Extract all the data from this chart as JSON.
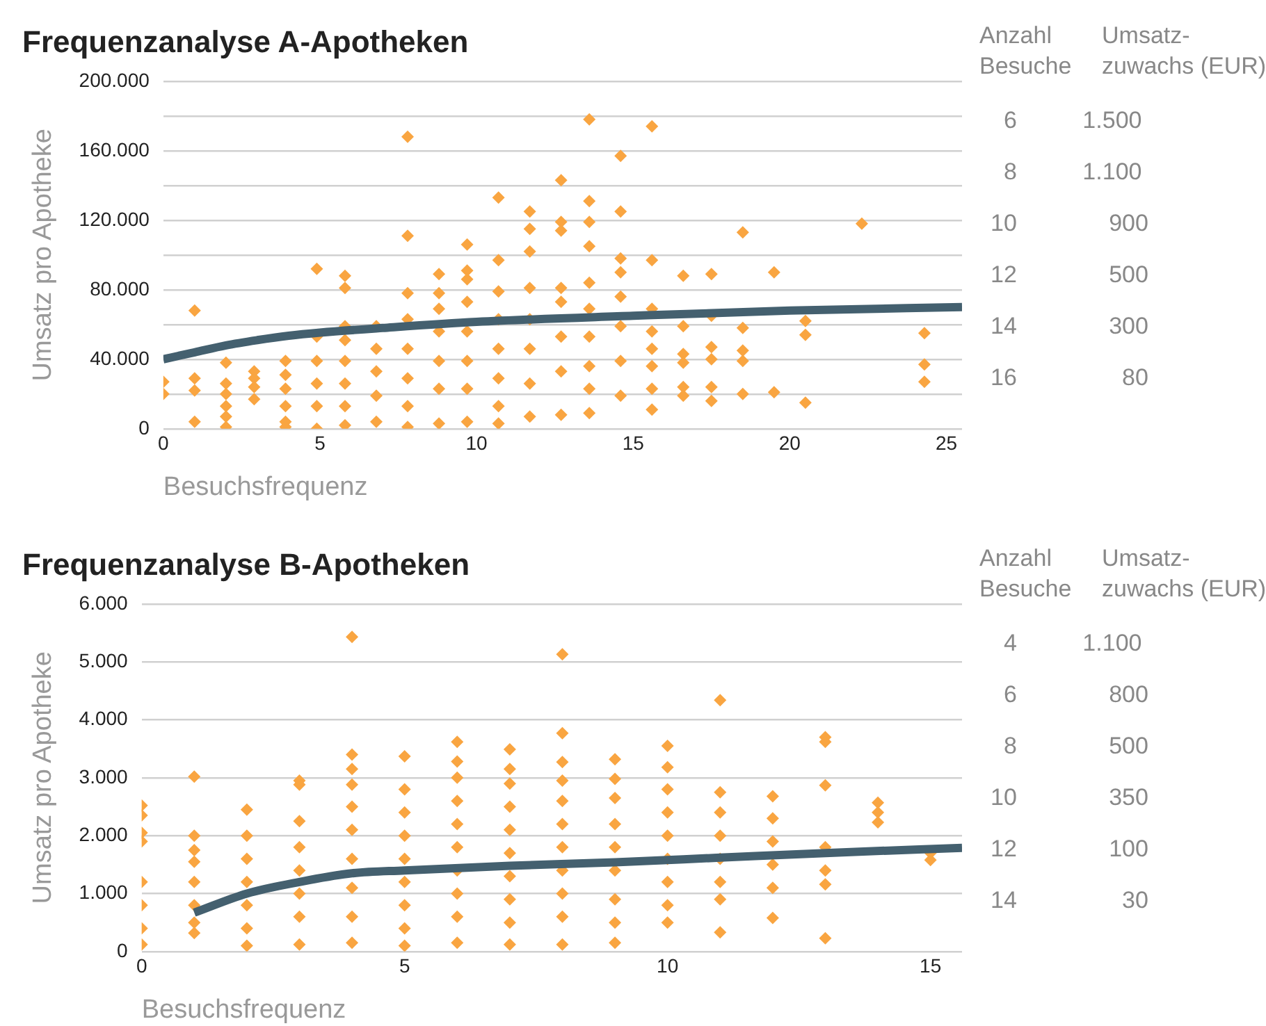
{
  "chart_data": [
    {
      "type": "scatter",
      "title": "Frequenzanalyse A-Apotheken",
      "xlabel": "Besuchsfrequenz",
      "ylabel": "Umsatz pro Apotheke",
      "grid": "y",
      "legend": false,
      "xlim": [
        0,
        25.5
      ],
      "xticks": [
        0,
        5,
        10,
        15,
        20,
        25
      ],
      "ylim": [
        0,
        200000
      ],
      "yticks": [
        {
          "value": 0,
          "label": "0"
        },
        {
          "value": 20000,
          "label": null
        },
        {
          "value": 40000,
          "label": "40.000"
        },
        {
          "value": 60000,
          "label": null
        },
        {
          "value": 80000,
          "label": "80.000"
        },
        {
          "value": 100000,
          "label": null
        },
        {
          "value": 120000,
          "label": "120.000"
        },
        {
          "value": 140000,
          "label": null
        },
        {
          "value": 160000,
          "label": "160.000"
        },
        {
          "value": 180000,
          "label": null
        },
        {
          "value": 200000,
          "label": "200.000"
        }
      ],
      "series": [
        {
          "type": "scatter",
          "marker": "diamond",
          "color": "#f9a541",
          "x": [
            0,
            0,
            1,
            1,
            1,
            1,
            2,
            2,
            2,
            2,
            2,
            2,
            2.9,
            2.9,
            2.9,
            2.9,
            3.9,
            3.9,
            3.9,
            3.9,
            3.9,
            3.9,
            4.9,
            4.9,
            4.9,
            4.9,
            4.9,
            4.9,
            5.8,
            5.8,
            5.8,
            5.8,
            5.8,
            5.8,
            5.8,
            5.8,
            6.8,
            6.8,
            6.8,
            6.8,
            6.8,
            7.8,
            7.8,
            7.8,
            7.8,
            7.8,
            7.8,
            7.8,
            7.8,
            8.8,
            8.8,
            8.8,
            8.8,
            8.8,
            8.8,
            8.8,
            9.7,
            9.7,
            9.7,
            9.7,
            9.7,
            9.7,
            9.7,
            9.7,
            10.7,
            10.7,
            10.7,
            10.7,
            10.7,
            10.7,
            10.7,
            10.7,
            11.7,
            11.7,
            11.7,
            11.7,
            11.7,
            11.7,
            11.7,
            11.7,
            12.7,
            12.7,
            12.7,
            12.7,
            12.7,
            12.7,
            12.7,
            12.7,
            13.6,
            13.6,
            13.6,
            13.6,
            13.6,
            13.6,
            13.6,
            13.6,
            13.6,
            13.6,
            14.6,
            14.6,
            14.6,
            14.6,
            14.6,
            14.6,
            14.6,
            14.6,
            15.6,
            15.6,
            15.6,
            15.6,
            15.6,
            15.6,
            15.6,
            15.6,
            16.6,
            16.6,
            16.6,
            16.6,
            16.6,
            16.6,
            17.5,
            17.5,
            17.5,
            17.5,
            17.5,
            17.5,
            18.5,
            18.5,
            18.5,
            18.5,
            18.5,
            19.5,
            19.5,
            20.5,
            20.5,
            20.5,
            22.3,
            24.3,
            24.3,
            24.3
          ],
          "values": [
            27000,
            20000,
            68000,
            29000,
            22000,
            4000,
            38000,
            26000,
            20000,
            13000,
            7000,
            1000,
            33000,
            29000,
            24000,
            17000,
            39000,
            31000,
            23000,
            13000,
            4000,
            1000,
            92000,
            53000,
            39000,
            26000,
            13000,
            0,
            88000,
            81000,
            59000,
            51000,
            39000,
            26000,
            13000,
            2000,
            59000,
            46000,
            33000,
            19000,
            4000,
            168000,
            111000,
            78000,
            63000,
            46000,
            29000,
            13000,
            1000,
            89000,
            78000,
            69000,
            56000,
            39000,
            23000,
            3000,
            106000,
            91000,
            86000,
            73000,
            56000,
            39000,
            23000,
            4000,
            133000,
            97000,
            79000,
            63000,
            46000,
            29000,
            13000,
            3000,
            125000,
            115000,
            102000,
            81000,
            63000,
            46000,
            26000,
            7000,
            143000,
            119000,
            114000,
            81000,
            73000,
            53000,
            33000,
            8000,
            178000,
            131000,
            119000,
            105000,
            84000,
            69000,
            53000,
            36000,
            23000,
            9000,
            157000,
            125000,
            98000,
            90000,
            76000,
            59000,
            39000,
            19000,
            174000,
            97000,
            69000,
            56000,
            46000,
            36000,
            23000,
            11000,
            88000,
            59000,
            43000,
            38000,
            24000,
            19000,
            89000,
            65000,
            47000,
            40000,
            24000,
            16000,
            113000,
            58000,
            45000,
            39000,
            20000,
            90000,
            21000,
            62000,
            54000,
            15000,
            118000,
            55000,
            37000,
            27000
          ]
        },
        {
          "type": "line",
          "marker": "none",
          "color": "#44606f",
          "x": [
            0,
            1,
            2,
            3,
            4,
            5,
            7,
            10,
            15,
            20,
            25.5
          ],
          "values": [
            40000,
            44000,
            48000,
            51000,
            53500,
            55300,
            58000,
            61500,
            65000,
            68000,
            70000
          ]
        }
      ]
    },
    {
      "type": "other",
      "annotations": [
        "Anzahl",
        "Umsatz-",
        "Besuche",
        "zuwachs (EUR)",
        "6 1.500",
        "8 1.100",
        "10 900",
        "12 500",
        "14 300",
        "16 80"
      ]
    },
    {
      "type": "scatter",
      "title": "Frequenzanalyse B-Apotheken",
      "xlabel": "Besuchsfrequenz",
      "ylabel": "Umsatz pro Apotheke",
      "grid": "y",
      "legend": false,
      "xlim": [
        0,
        15.6
      ],
      "xticks": [
        0,
        5,
        10,
        15
      ],
      "ylim": [
        0,
        6000
      ],
      "yticks": [
        {
          "value": 0,
          "label": "0"
        },
        {
          "value": 1000,
          "label": "1.000"
        },
        {
          "value": 2000,
          "label": "2.000"
        },
        {
          "value": 3000,
          "label": "3.000"
        },
        {
          "value": 4000,
          "label": "4.000"
        },
        {
          "value": 5000,
          "label": "5.000"
        },
        {
          "value": 6000,
          "label": "6.000"
        }
      ],
      "series": [
        {
          "type": "scatter",
          "marker": "diamond",
          "color": "#f9a541",
          "x": [
            0,
            0,
            0,
            0,
            0,
            0,
            0,
            0,
            1,
            1,
            1,
            1,
            1,
            1,
            1,
            1,
            2,
            2,
            2,
            2,
            2,
            2,
            2,
            3,
            3,
            3,
            3,
            3,
            3,
            3,
            3,
            4,
            4,
            4,
            4,
            4,
            4,
            4,
            4,
            4,
            4,
            5,
            5,
            5,
            5,
            5,
            5,
            5,
            5,
            5,
            6,
            6,
            6,
            6,
            6,
            6,
            6,
            6,
            6,
            6,
            7,
            7,
            7,
            7,
            7,
            7,
            7,
            7,
            7,
            7,
            8,
            8,
            8,
            8,
            8,
            8,
            8,
            8,
            8,
            8,
            8,
            9,
            9,
            9,
            9,
            9,
            9,
            9,
            9,
            9,
            10,
            10,
            10,
            10,
            10,
            10,
            10,
            10,
            10,
            11,
            11,
            11,
            11,
            11,
            11,
            11,
            11,
            12,
            12,
            12,
            12,
            12,
            12,
            13,
            13,
            13,
            13,
            13,
            13,
            13,
            14,
            14,
            14,
            15,
            15
          ],
          "values": [
            2520,
            2350,
            2050,
            1900,
            1200,
            800,
            400,
            120,
            3020,
            2000,
            1750,
            1550,
            1200,
            800,
            500,
            320,
            2450,
            2000,
            1600,
            1200,
            800,
            400,
            100,
            2950,
            2880,
            2250,
            1800,
            1400,
            1000,
            600,
            120,
            5430,
            3400,
            3150,
            2880,
            2500,
            2100,
            1600,
            1100,
            600,
            150,
            3370,
            2800,
            2400,
            2000,
            1600,
            1200,
            800,
            400,
            100,
            3620,
            3280,
            3000,
            2600,
            2200,
            1800,
            1400,
            1000,
            600,
            150,
            3490,
            3150,
            2900,
            2500,
            2100,
            1700,
            1300,
            900,
            500,
            120,
            5130,
            3770,
            3270,
            2950,
            2600,
            2200,
            1800,
            1400,
            1000,
            600,
            120,
            3320,
            2980,
            2650,
            2200,
            1800,
            1400,
            900,
            500,
            150,
            3550,
            3180,
            2800,
            2400,
            2000,
            1600,
            1200,
            800,
            500,
            4340,
            2750,
            2400,
            2000,
            1600,
            1200,
            900,
            330,
            2680,
            2300,
            1900,
            1500,
            1100,
            580,
            3700,
            3620,
            2870,
            1800,
            1400,
            1160,
            230,
            2570,
            2400,
            2230,
            1700,
            1580
          ]
        },
        {
          "type": "line",
          "marker": "none",
          "color": "#44606f",
          "x": [
            1,
            2,
            3,
            4,
            5,
            7,
            9,
            11,
            13,
            15.6
          ],
          "values": [
            670,
            1000,
            1200,
            1350,
            1400,
            1480,
            1540,
            1620,
            1700,
            1790
          ]
        }
      ]
    },
    {
      "type": "other",
      "annotations": [
        "Anzahl",
        "Umsatz-",
        "Besuche",
        "zuwachs (EUR)",
        "4 1.100",
        "6 800",
        "8 500",
        "10 350",
        "12 100",
        "14 30"
      ]
    }
  ]
}
